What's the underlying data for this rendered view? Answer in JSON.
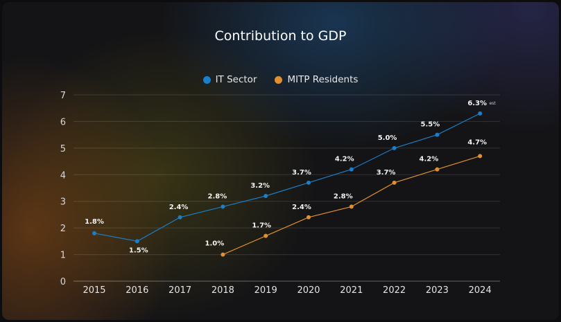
{
  "colors": {
    "it_sector": "#1a7fc8",
    "mitp_residents": "#e0902e"
  },
  "chart_data": {
    "type": "line",
    "title": "Contribution to GDP",
    "xlabel": "",
    "ylabel": "",
    "ylim": [
      0,
      7
    ],
    "yticks": [
      0,
      1,
      2,
      3,
      4,
      5,
      6,
      7
    ],
    "grid": true,
    "legend_position": "top-center",
    "categories": [
      "2015",
      "2016",
      "2017",
      "2018",
      "2019",
      "2020",
      "2021",
      "2022",
      "2023",
      "2024"
    ],
    "series": [
      {
        "name": "IT Sector",
        "values": [
          1.8,
          1.5,
          2.4,
          2.8,
          3.2,
          3.7,
          4.2,
          5.0,
          5.5,
          6.3
        ],
        "labels": [
          "1.8%",
          "1.5%",
          "2.4%",
          "2.8%",
          "3.2%",
          "3.7%",
          "4.2%",
          "5.0%",
          "5.5%",
          "6.3%"
        ],
        "label_suffixes": [
          "",
          "",
          "",
          "",
          "",
          "",
          "",
          "",
          "",
          "est"
        ]
      },
      {
        "name": "MITP Residents",
        "values": [
          null,
          null,
          null,
          1.0,
          1.7,
          2.4,
          2.8,
          3.7,
          4.2,
          4.7
        ],
        "labels": [
          "",
          "",
          "",
          "1.0%",
          "1.7%",
          "2.4%",
          "2.8%",
          "3.7%",
          "4.2%",
          "4.7%"
        ],
        "label_suffixes": [
          "",
          "",
          "",
          "",
          "",
          "",
          "",
          "",
          "",
          ""
        ]
      }
    ]
  }
}
